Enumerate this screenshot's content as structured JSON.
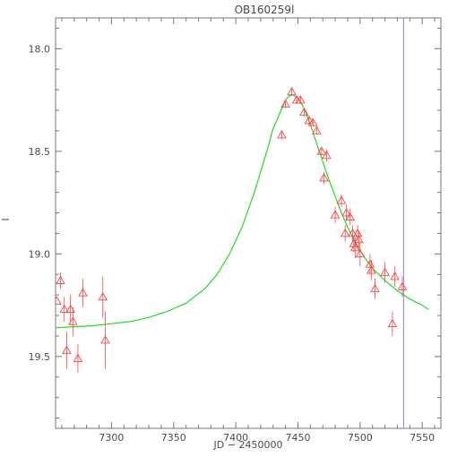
{
  "chart_data": {
    "type": "scatter",
    "title": "OB160259l",
    "xlabel": "JD − 2450000",
    "ylabel": "I",
    "xlim": [
      7255,
      7565
    ],
    "ylim": [
      19.85,
      17.85
    ],
    "y_inverted": true,
    "x_ticks": [
      7300,
      7350,
      7400,
      7450,
      7500,
      7550
    ],
    "x_tick_labels": [
      "7300",
      "7350",
      "7400",
      "7450",
      "7500",
      "7550"
    ],
    "y_ticks": [
      18.0,
      18.5,
      19.0,
      19.5
    ],
    "y_tick_labels": [
      "18.0",
      "18.5",
      "19.0",
      "19.5"
    ],
    "colors": {
      "data": "#ff4444",
      "model": "#22dd22",
      "marker_line": "#8080ff",
      "axis": "#777777",
      "text": "#4a4a4a"
    },
    "marker_line_x": 7535,
    "observations": [
      {
        "x": 7256,
        "y": 19.23,
        "err": 0.0
      },
      {
        "x": 7259,
        "y": 19.13,
        "err": 0.04
      },
      {
        "x": 7262,
        "y": 19.27,
        "err": 0.06
      },
      {
        "x": 7264,
        "y": 19.47,
        "err": 0.09
      },
      {
        "x": 7267,
        "y": 19.27,
        "err": 0.07
      },
      {
        "x": 7269,
        "y": 19.33,
        "err": 0.07
      },
      {
        "x": 7273,
        "y": 19.51,
        "err": 0.07
      },
      {
        "x": 7277,
        "y": 19.19,
        "err": 0.07
      },
      {
        "x": 7293,
        "y": 19.21,
        "err": 0.1
      },
      {
        "x": 7295,
        "y": 19.42,
        "err": 0.14
      },
      {
        "x": 7437,
        "y": 18.42,
        "err": 0.02
      },
      {
        "x": 7440,
        "y": 18.27,
        "err": 0.02
      },
      {
        "x": 7445,
        "y": 18.21,
        "err": 0.02
      },
      {
        "x": 7449,
        "y": 18.25,
        "err": 0.02
      },
      {
        "x": 7452,
        "y": 18.25,
        "err": 0.02
      },
      {
        "x": 7455,
        "y": 18.31,
        "err": 0.02
      },
      {
        "x": 7459,
        "y": 18.35,
        "err": 0.02
      },
      {
        "x": 7462,
        "y": 18.36,
        "err": 0.02
      },
      {
        "x": 7465,
        "y": 18.4,
        "err": 0.02
      },
      {
        "x": 7469,
        "y": 18.5,
        "err": 0.02
      },
      {
        "x": 7471,
        "y": 18.63,
        "err": 0.03
      },
      {
        "x": 7473,
        "y": 18.52,
        "err": 0.03
      },
      {
        "x": 7480,
        "y": 18.81,
        "err": 0.04
      },
      {
        "x": 7485,
        "y": 18.74,
        "err": 0.03
      },
      {
        "x": 7488,
        "y": 18.9,
        "err": 0.04
      },
      {
        "x": 7489,
        "y": 18.8,
        "err": 0.04
      },
      {
        "x": 7492,
        "y": 18.82,
        "err": 0.04
      },
      {
        "x": 7494,
        "y": 18.9,
        "err": 0.04
      },
      {
        "x": 7495,
        "y": 18.95,
        "err": 0.04
      },
      {
        "x": 7496,
        "y": 18.97,
        "err": 0.05
      },
      {
        "x": 7498,
        "y": 18.9,
        "err": 0.04
      },
      {
        "x": 7499,
        "y": 18.93,
        "err": 0.04
      },
      {
        "x": 7500,
        "y": 19.0,
        "err": 0.06
      },
      {
        "x": 7508,
        "y": 19.05,
        "err": 0.05
      },
      {
        "x": 7509,
        "y": 19.08,
        "err": 0.05
      },
      {
        "x": 7512,
        "y": 19.17,
        "err": 0.05
      },
      {
        "x": 7520,
        "y": 19.09,
        "err": 0.05
      },
      {
        "x": 7526,
        "y": 19.34,
        "err": 0.06
      },
      {
        "x": 7528,
        "y": 19.11,
        "err": 0.05
      },
      {
        "x": 7534,
        "y": 19.16,
        "err": 0.05
      }
    ],
    "model_curve": {
      "x": [
        7255,
        7270,
        7285,
        7300,
        7315,
        7330,
        7345,
        7360,
        7375,
        7385,
        7395,
        7405,
        7415,
        7425,
        7430,
        7435,
        7440,
        7443,
        7446,
        7450,
        7455,
        7460,
        7465,
        7470,
        7475,
        7480,
        7485,
        7490,
        7495,
        7500,
        7505,
        7510,
        7520,
        7530,
        7540,
        7550,
        7555
      ],
      "y": [
        19.36,
        19.355,
        19.35,
        19.34,
        19.33,
        19.31,
        19.28,
        19.24,
        19.17,
        19.1,
        19.0,
        18.87,
        18.7,
        18.5,
        18.39,
        18.32,
        18.25,
        18.23,
        18.225,
        18.24,
        18.29,
        18.37,
        18.46,
        18.55,
        18.64,
        18.72,
        18.8,
        18.87,
        18.93,
        18.98,
        19.03,
        19.07,
        19.13,
        19.18,
        19.22,
        19.25,
        19.27
      ]
    }
  }
}
